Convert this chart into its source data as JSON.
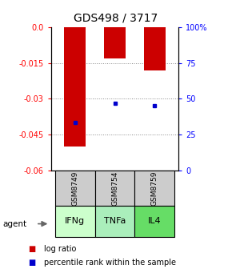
{
  "title": "GDS498 / 3717",
  "samples": [
    "GSM8749",
    "GSM8754",
    "GSM8759"
  ],
  "agents": [
    "IFNg",
    "TNFa",
    "IL4"
  ],
  "log_ratio": [
    -0.05,
    -0.013,
    -0.018
  ],
  "percentile_rank": [
    -0.04,
    -0.032,
    -0.033
  ],
  "ylim_left": [
    -0.06,
    0.0
  ],
  "yticks_left": [
    0.0,
    -0.015,
    -0.03,
    -0.045,
    -0.06
  ],
  "yticks_right_labels": [
    "100%",
    "75",
    "50",
    "25",
    "0"
  ],
  "bar_color": "#cc0000",
  "marker_color": "#0000cc",
  "agent_colors": [
    "#ccffcc",
    "#aaeebb",
    "#66dd66"
  ],
  "sample_box_color": "#cccccc",
  "legend_labels": [
    "log ratio",
    "percentile rank within the sample"
  ],
  "background_color": "#ffffff"
}
